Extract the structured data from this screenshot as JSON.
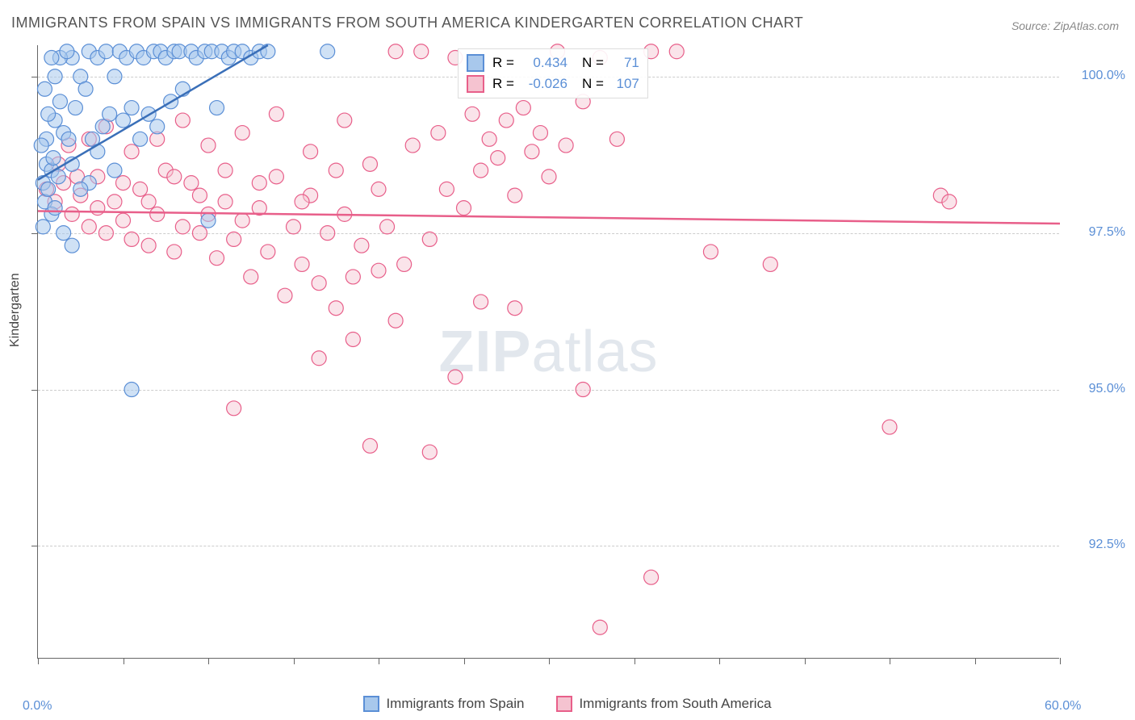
{
  "title": "IMMIGRANTS FROM SPAIN VS IMMIGRANTS FROM SOUTH AMERICA KINDERGARTEN CORRELATION CHART",
  "source": "Source: ZipAtlas.com",
  "watermark_bold": "ZIP",
  "watermark_light": "atlas",
  "y_axis_label": "Kindergarten",
  "chart": {
    "type": "scatter",
    "xlim": [
      0,
      60
    ],
    "ylim": [
      90.7,
      100.5
    ],
    "x_ticks": [
      0,
      60
    ],
    "x_tick_labels": [
      "0.0%",
      "60.0%"
    ],
    "x_minor_ticks": [
      5,
      10,
      15,
      20,
      25,
      30,
      35,
      40,
      45,
      50,
      55
    ],
    "y_ticks": [
      92.5,
      95.0,
      97.5,
      100.0
    ],
    "y_tick_labels": [
      "92.5%",
      "95.0%",
      "97.5%",
      "100.0%"
    ],
    "grid_color": "#cccccc",
    "background_color": "#ffffff",
    "series": [
      {
        "name": "Immigrants from Spain",
        "marker_color_fill": "#a8c8ec",
        "marker_color_stroke": "#5b8fd6",
        "line_color": "#3a6fb8",
        "line_width": 2.5,
        "marker_radius": 9,
        "fill_opacity": 0.55,
        "R": "0.434",
        "N": "71",
        "trend": {
          "x1": 0,
          "y1": 98.35,
          "x2": 13.5,
          "y2": 100.5
        },
        "points": [
          [
            0.3,
            98.3
          ],
          [
            0.5,
            98.6
          ],
          [
            0.4,
            98.0
          ],
          [
            0.8,
            98.5
          ],
          [
            0.6,
            98.2
          ],
          [
            0.9,
            98.7
          ],
          [
            0.5,
            99.0
          ],
          [
            1.0,
            99.3
          ],
          [
            1.2,
            98.4
          ],
          [
            1.5,
            99.1
          ],
          [
            1.3,
            99.6
          ],
          [
            1.8,
            99.0
          ],
          [
            2.0,
            98.6
          ],
          [
            2.2,
            99.5
          ],
          [
            2.5,
            100.0
          ],
          [
            2.0,
            100.3
          ],
          [
            2.8,
            99.8
          ],
          [
            3.0,
            100.4
          ],
          [
            3.2,
            99.0
          ],
          [
            3.5,
            100.3
          ],
          [
            3.8,
            99.2
          ],
          [
            4.0,
            100.4
          ],
          [
            4.2,
            99.4
          ],
          [
            4.5,
            100.0
          ],
          [
            4.8,
            100.4
          ],
          [
            5.0,
            99.3
          ],
          [
            5.2,
            100.3
          ],
          [
            5.5,
            99.5
          ],
          [
            5.8,
            100.4
          ],
          [
            6.0,
            99.0
          ],
          [
            6.2,
            100.3
          ],
          [
            6.5,
            99.4
          ],
          [
            6.8,
            100.4
          ],
          [
            7.0,
            99.2
          ],
          [
            7.2,
            100.4
          ],
          [
            7.5,
            100.3
          ],
          [
            7.8,
            99.6
          ],
          [
            8.0,
            100.4
          ],
          [
            8.3,
            100.4
          ],
          [
            8.5,
            99.8
          ],
          [
            9.0,
            100.4
          ],
          [
            9.3,
            100.3
          ],
          [
            9.8,
            100.4
          ],
          [
            10.2,
            100.4
          ],
          [
            10.5,
            99.5
          ],
          [
            10.8,
            100.4
          ],
          [
            11.2,
            100.3
          ],
          [
            11.5,
            100.4
          ],
          [
            12.0,
            100.4
          ],
          [
            12.5,
            100.3
          ],
          [
            13.0,
            100.4
          ],
          [
            13.5,
            100.4
          ],
          [
            17.0,
            100.4
          ],
          [
            0.3,
            97.6
          ],
          [
            0.8,
            97.8
          ],
          [
            1.5,
            97.5
          ],
          [
            2.0,
            97.3
          ],
          [
            0.2,
            98.9
          ],
          [
            0.6,
            99.4
          ],
          [
            1.0,
            100.0
          ],
          [
            1.3,
            100.3
          ],
          [
            1.7,
            100.4
          ],
          [
            3.0,
            98.3
          ],
          [
            4.5,
            98.5
          ],
          [
            10.0,
            97.7
          ],
          [
            5.5,
            95.0
          ],
          [
            1.0,
            97.9
          ],
          [
            0.4,
            99.8
          ],
          [
            0.8,
            100.3
          ],
          [
            2.5,
            98.2
          ],
          [
            3.5,
            98.8
          ]
        ]
      },
      {
        "name": "Immigrants from South America",
        "marker_color_fill": "#f5c3d0",
        "marker_color_stroke": "#e85f8a",
        "line_color": "#e85f8a",
        "line_width": 2.5,
        "marker_radius": 9,
        "fill_opacity": 0.45,
        "R": "-0.026",
        "N": "107",
        "trend": {
          "x1": 0,
          "y1": 97.85,
          "x2": 60,
          "y2": 97.65
        },
        "points": [
          [
            0.5,
            98.2
          ],
          [
            1.0,
            98.0
          ],
          [
            1.5,
            98.3
          ],
          [
            2.0,
            97.8
          ],
          [
            2.5,
            98.1
          ],
          [
            3.0,
            97.6
          ],
          [
            3.5,
            98.4
          ],
          [
            4.0,
            97.5
          ],
          [
            4.5,
            98.0
          ],
          [
            5.0,
            97.7
          ],
          [
            5.5,
            97.4
          ],
          [
            6.0,
            98.2
          ],
          [
            6.5,
            97.3
          ],
          [
            7.0,
            97.8
          ],
          [
            7.5,
            98.5
          ],
          [
            8.0,
            97.2
          ],
          [
            8.5,
            97.6
          ],
          [
            9.0,
            98.3
          ],
          [
            9.5,
            97.5
          ],
          [
            10.0,
            97.8
          ],
          [
            10.5,
            97.1
          ],
          [
            11.0,
            98.0
          ],
          [
            11.5,
            97.4
          ],
          [
            12.0,
            97.7
          ],
          [
            12.5,
            96.8
          ],
          [
            13.0,
            97.9
          ],
          [
            13.5,
            97.2
          ],
          [
            14.0,
            98.4
          ],
          [
            14.5,
            96.5
          ],
          [
            15.0,
            97.6
          ],
          [
            15.5,
            97.0
          ],
          [
            16.0,
            98.1
          ],
          [
            16.5,
            96.7
          ],
          [
            17.0,
            97.5
          ],
          [
            17.5,
            96.3
          ],
          [
            18.0,
            97.8
          ],
          [
            18.5,
            96.8
          ],
          [
            19.0,
            97.3
          ],
          [
            19.5,
            98.6
          ],
          [
            20.0,
            96.9
          ],
          [
            20.5,
            97.6
          ],
          [
            21.0,
            100.4
          ],
          [
            21.5,
            97.0
          ],
          [
            22.0,
            98.9
          ],
          [
            22.5,
            100.4
          ],
          [
            23.0,
            97.4
          ],
          [
            23.5,
            99.1
          ],
          [
            24.0,
            98.2
          ],
          [
            24.5,
            100.3
          ],
          [
            25.0,
            97.9
          ],
          [
            25.5,
            99.4
          ],
          [
            26.0,
            98.5
          ],
          [
            26.5,
            99.0
          ],
          [
            27.0,
            98.7
          ],
          [
            27.5,
            99.3
          ],
          [
            28.0,
            98.1
          ],
          [
            28.5,
            99.5
          ],
          [
            29.0,
            98.8
          ],
          [
            29.5,
            99.1
          ],
          [
            30.0,
            98.4
          ],
          [
            30.5,
            100.4
          ],
          [
            31.0,
            98.9
          ],
          [
            32.0,
            99.6
          ],
          [
            33.0,
            100.3
          ],
          [
            34.0,
            99.0
          ],
          [
            36.0,
            100.4
          ],
          [
            37.5,
            100.4
          ],
          [
            28.0,
            96.3
          ],
          [
            19.5,
            94.1
          ],
          [
            11.5,
            94.7
          ],
          [
            32.0,
            95.0
          ],
          [
            36.0,
            92.0
          ],
          [
            33.0,
            91.2
          ],
          [
            39.5,
            97.2
          ],
          [
            43.0,
            97.0
          ],
          [
            50.0,
            94.4
          ],
          [
            53.0,
            98.1
          ],
          [
            53.5,
            98.0
          ],
          [
            1.2,
            98.6
          ],
          [
            1.8,
            98.9
          ],
          [
            2.3,
            98.4
          ],
          [
            3.0,
            99.0
          ],
          [
            4.0,
            99.2
          ],
          [
            5.5,
            98.8
          ],
          [
            7.0,
            99.0
          ],
          [
            8.5,
            99.3
          ],
          [
            10.0,
            98.9
          ],
          [
            12.0,
            99.1
          ],
          [
            14.0,
            99.4
          ],
          [
            16.0,
            98.8
          ],
          [
            18.0,
            99.3
          ],
          [
            3.5,
            97.9
          ],
          [
            5.0,
            98.3
          ],
          [
            6.5,
            98.0
          ],
          [
            8.0,
            98.4
          ],
          [
            9.5,
            98.1
          ],
          [
            11.0,
            98.5
          ],
          [
            13.0,
            98.3
          ],
          [
            15.5,
            98.0
          ],
          [
            17.5,
            98.5
          ],
          [
            20.0,
            98.2
          ],
          [
            23.0,
            94.0
          ],
          [
            16.5,
            95.5
          ],
          [
            18.5,
            95.8
          ],
          [
            21.0,
            96.1
          ],
          [
            24.5,
            95.2
          ],
          [
            26.0,
            96.4
          ]
        ]
      }
    ]
  },
  "legend_labels": {
    "r_eq": "R =",
    "n_eq": "N ="
  }
}
